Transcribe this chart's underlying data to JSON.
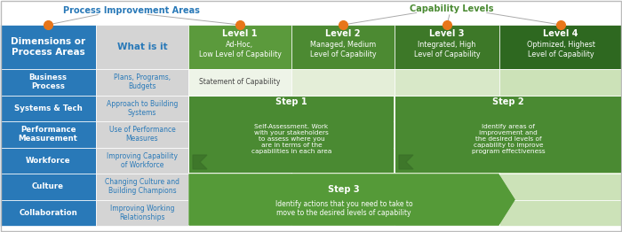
{
  "title_process": "Process Improvement Areas",
  "title_capability": "Capability Levels",
  "rows": [
    {
      "dim": "Business\nProcess",
      "what": "Plans, Programs,\nBudgets"
    },
    {
      "dim": "Systems & Tech",
      "what": "Approach to Building\nSystems"
    },
    {
      "dim": "Performance\nMeasurement",
      "what": "Use of Performance\nMeasures"
    },
    {
      "dim": "Workforce",
      "what": "Improving Capability\nof Workforce"
    },
    {
      "dim": "Culture",
      "what": "Changing Culture and\nBuilding Champions"
    },
    {
      "dim": "Collaboration",
      "what": "Improving Working\nRelationships"
    }
  ],
  "step1_title": "Step 1",
  "step1_body": "Self-Assessment. Work\nwith your stakeholders\nto assess where you\nare in terms of the\ncapabilities in each area",
  "step2_title": "Step 2",
  "step2_body": "Identify areas of\nimprovement and\nthe desired levels of\ncapability to improve\nprogram effectiveness",
  "step3_title": "Step 3",
  "step3_body": "Identify actions that you need to take to\nmove to the desired levels of capability",
  "statement": "Statement of Capability",
  "col0_header": "Dimensions or\nProcess Areas",
  "col1_header": "What is it",
  "lvl1_title": "Level 1",
  "lvl1_sub": "Ad-Hoc,\nLow Level of Capability",
  "lvl2_title": "Level 2",
  "lvl2_sub": "Managed, Medium\nLevel of Capability",
  "lvl3_title": "Level 3",
  "lvl3_sub": "Integrated, High\nLevel of Capability",
  "lvl4_title": "Level 4",
  "lvl4_sub": "Optimized, Highest\nLevel of Capability",
  "blue": "#2979B8",
  "blue_light": "#4A90C8",
  "gray_col": "#D4D4D4",
  "green_hdr1": "#5B9A3C",
  "green_hdr2": "#4C8A32",
  "green_hdr3": "#3D7828",
  "green_hdr4": "#2E6820",
  "green_step": "#4A8A32",
  "green_step3": "#559A38",
  "cell_light1": "#EEF4E8",
  "cell_light2": "#E4EED8",
  "cell_light3": "#D8E8C8",
  "cell_light4": "#CCE2B8",
  "orange": "#E8761A",
  "gray_line": "#AAAAAA",
  "white": "#FFFFFF",
  "text_dark": "#444444",
  "text_blue": "#2979B8",
  "text_green": "#4A8A32"
}
